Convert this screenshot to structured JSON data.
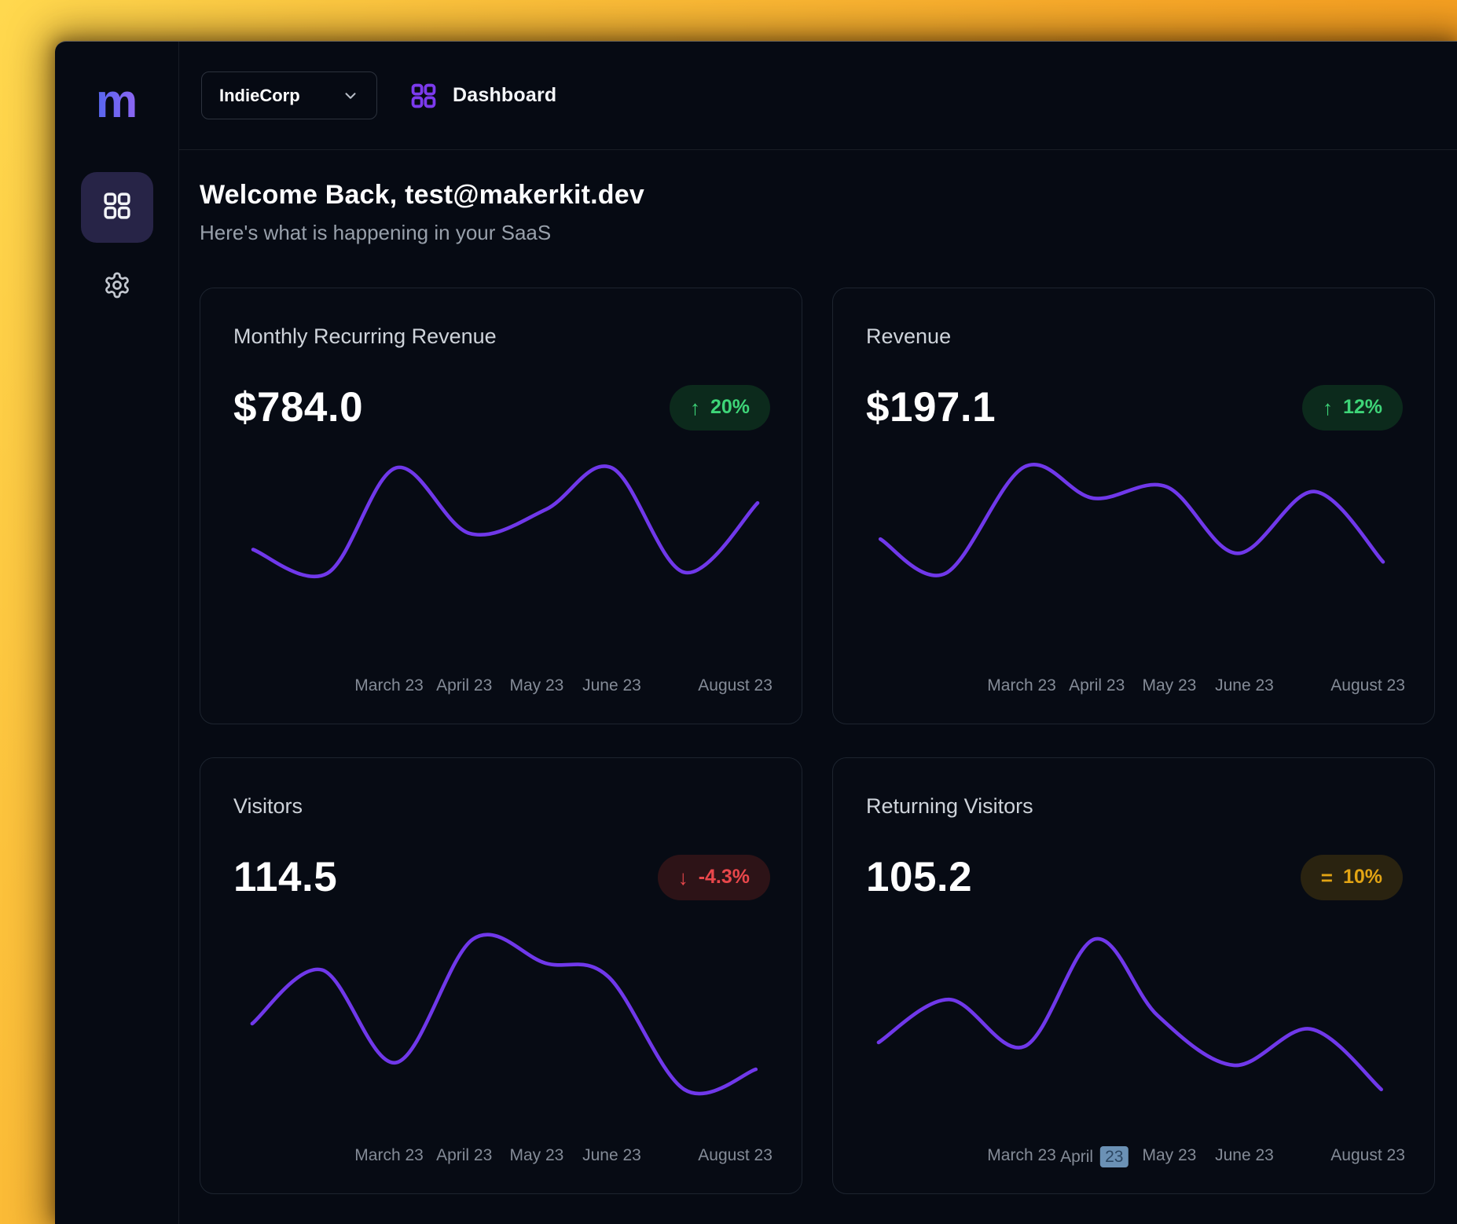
{
  "desktop": {
    "wallpaper_colors": [
      "#ffd84e",
      "#f8a828",
      "#ef8d12"
    ]
  },
  "sidebar": {
    "logo_text": "m",
    "items": [
      {
        "id": "dashboard",
        "icon": "grid-icon",
        "active": true
      },
      {
        "id": "settings",
        "icon": "gear-icon",
        "active": false
      }
    ]
  },
  "topbar": {
    "account_selector_label": "IndieCorp",
    "page_icon": "grid-icon",
    "page_title": "Dashboard"
  },
  "welcome": {
    "title": "Welcome Back, test@makerkit.dev",
    "subtitle": "Here's what is happening in your SaaS"
  },
  "colors": {
    "chart_line": "#7038ea",
    "accent_purple": "#7c3aed",
    "badge_up_bg": "#0c2a1c",
    "badge_up_text": "#3ed578",
    "badge_down_bg": "#2d1317",
    "badge_down_text": "#e9474b",
    "badge_stale_bg": "#2a2310",
    "badge_stale_text": "#e2a414",
    "selection_highlight": "#6b91b5"
  },
  "badge_icons": {
    "up": "↑",
    "down": "↓",
    "stale": "="
  },
  "chart_data": [
    {
      "id": "mrr",
      "type": "line",
      "title": "Monthly Recurring Revenue",
      "value": "$784.0",
      "trend": "up",
      "trend_badge": "20%",
      "xlabel": "",
      "ylabel": "",
      "x_range": [
        "March 23",
        "August 23"
      ],
      "x_ticks": [
        {
          "label": "March 23",
          "pos": 0.29
        },
        {
          "label": "April 23",
          "pos": 0.43
        },
        {
          "label": "May 23",
          "pos": 0.565
        },
        {
          "label": "June 23",
          "pos": 0.705
        },
        {
          "label": "August 23",
          "pos": 0.935
        }
      ],
      "y_axis_labeled": false,
      "relative_values": [
        22,
        0,
        99,
        38,
        60,
        99,
        1,
        66
      ],
      "points": [
        [
          22,
          93
        ],
        [
          105,
          118
        ],
        [
          182,
          7
        ],
        [
          264,
          76
        ],
        [
          349,
          51
        ],
        [
          423,
          7
        ],
        [
          504,
          117
        ],
        [
          586,
          44
        ]
      ]
    },
    {
      "id": "revenue",
      "type": "line",
      "title": "Revenue",
      "value": "$197.1",
      "trend": "up",
      "trend_badge": "12%",
      "xlabel": "",
      "ylabel": "",
      "x_range": [
        "March 23",
        "August 23"
      ],
      "x_ticks": [
        {
          "label": "March 23",
          "pos": 0.29
        },
        {
          "label": "April 23",
          "pos": 0.43
        },
        {
          "label": "May 23",
          "pos": 0.565
        },
        {
          "label": "June 23",
          "pos": 0.705
        },
        {
          "label": "August 23",
          "pos": 0.935
        }
      ],
      "y_axis_labeled": false,
      "relative_values": [
        32,
        0,
        100,
        71,
        81,
        19,
        77,
        11
      ],
      "points": [
        [
          16,
          82
        ],
        [
          89,
          118
        ],
        [
          177,
          6
        ],
        [
          254,
          39
        ],
        [
          336,
          27
        ],
        [
          415,
          97
        ],
        [
          501,
          32
        ],
        [
          578,
          106
        ]
      ]
    },
    {
      "id": "visitors",
      "type": "line",
      "title": "Visitors",
      "value": "114.5",
      "trend": "down",
      "trend_badge": "-4.3%",
      "xlabel": "",
      "ylabel": "",
      "x_range": [
        "March 23",
        "August 23"
      ],
      "x_ticks": [
        {
          "label": "March 23",
          "pos": 0.29
        },
        {
          "label": "April 23",
          "pos": 0.43
        },
        {
          "label": "May 23",
          "pos": 0.565
        },
        {
          "label": "June 23",
          "pos": 0.705
        },
        {
          "label": "August 23",
          "pos": 0.935
        }
      ],
      "y_axis_labeled": false,
      "relative_values": [
        44,
        79,
        18,
        100,
        84,
        75,
        0,
        13
      ],
      "points": [
        [
          21,
          69
        ],
        [
          99,
          29
        ],
        [
          182,
          98
        ],
        [
          268,
          6
        ],
        [
          349,
          24
        ],
        [
          419,
          34
        ],
        [
          504,
          118
        ],
        [
          584,
          103
        ]
      ]
    },
    {
      "id": "returning-visitors",
      "type": "line",
      "title": "Returning Visitors",
      "value": "105.2",
      "trend": "stale",
      "trend_badge": "10%",
      "xlabel": "",
      "ylabel": "",
      "x_range": [
        "March 23",
        "August 23"
      ],
      "x_ticks": [
        {
          "label": "March 23",
          "pos": 0.29
        },
        {
          "label": "April",
          "pos": 0.425,
          "highlighted_label": "23"
        },
        {
          "label": "May 23",
          "pos": 0.565
        },
        {
          "label": "June 23",
          "pos": 0.705
        },
        {
          "label": "August 23",
          "pos": 0.935
        }
      ],
      "y_axis_labeled": false,
      "relative_values": [
        31,
        60,
        29,
        100,
        49,
        16,
        40,
        0
      ],
      "points": [
        [
          14,
          83
        ],
        [
          93,
          51
        ],
        [
          177,
          86
        ],
        [
          256,
          6
        ],
        [
          326,
          63
        ],
        [
          411,
          100
        ],
        [
          497,
          73
        ],
        [
          576,
          118
        ]
      ]
    }
  ]
}
